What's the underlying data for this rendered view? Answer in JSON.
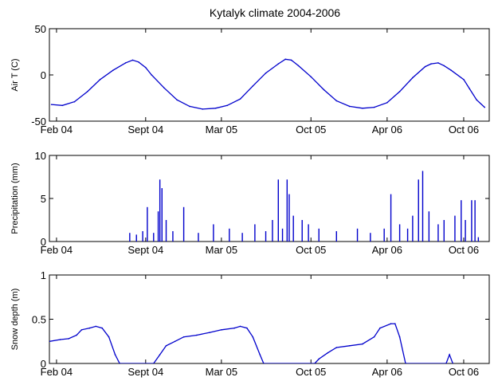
{
  "figure": {
    "title": "Kytalyk climate 2004-2006",
    "line_color": "#0000cc",
    "axis_color": "#000000",
    "background": "#ffffff"
  },
  "chart_data": [
    {
      "type": "line",
      "name": "air-temperature",
      "title": "Kytalyk climate 2004-2006",
      "xlabel": "",
      "ylabel": "Air T (C)",
      "x_axis": "date",
      "xlim": [
        "2004-01-15",
        "2006-12-01"
      ],
      "ylim": [
        -50,
        50
      ],
      "xticks": [
        {
          "date": "2004-02-01",
          "label": "Feb 04"
        },
        {
          "date": "2004-09-01",
          "label": "Sept 04"
        },
        {
          "date": "2005-03-01",
          "label": "Mar 05"
        },
        {
          "date": "2005-10-01",
          "label": "Oct 05"
        },
        {
          "date": "2006-04-01",
          "label": "Apr 06"
        },
        {
          "date": "2006-10-01",
          "label": "Oct 06"
        }
      ],
      "yticks": [
        -50,
        0,
        50
      ],
      "grid": false,
      "series": [
        {
          "color": "#0000cc",
          "x": [
            "2004-01-20",
            "2004-02-15",
            "2004-03-15",
            "2004-04-15",
            "2004-05-15",
            "2004-06-15",
            "2004-07-15",
            "2004-08-01",
            "2004-08-15",
            "2004-09-01",
            "2004-09-15",
            "2004-10-15",
            "2004-11-15",
            "2004-12-15",
            "2005-01-15",
            "2005-02-15",
            "2005-03-15",
            "2005-04-15",
            "2005-05-15",
            "2005-06-15",
            "2005-07-15",
            "2005-08-01",
            "2005-08-15",
            "2005-09-01",
            "2005-10-01",
            "2005-11-01",
            "2005-12-01",
            "2006-01-01",
            "2006-02-01",
            "2006-03-01",
            "2006-04-01",
            "2006-05-01",
            "2006-06-01",
            "2006-07-01",
            "2006-07-15",
            "2006-08-01",
            "2006-08-15",
            "2006-09-01",
            "2006-10-01",
            "2006-10-15",
            "2006-11-01",
            "2006-11-20"
          ],
          "y": [
            -32,
            -33,
            -29,
            -18,
            -5,
            5,
            13,
            16,
            14,
            8,
            0,
            -14,
            -27,
            -34,
            -37,
            -36,
            -33,
            -26,
            -12,
            2,
            12,
            17,
            16,
            10,
            -2,
            -16,
            -28,
            -34,
            -36,
            -35,
            -30,
            -18,
            -3,
            9,
            12,
            13,
            10,
            5,
            -5,
            -15,
            -27,
            -35
          ]
        }
      ]
    },
    {
      "type": "bar",
      "name": "precipitation",
      "xlabel": "",
      "ylabel": "Precipitation (mm)",
      "x_axis": "date",
      "xlim": [
        "2004-01-15",
        "2006-12-01"
      ],
      "ylim": [
        0,
        10
      ],
      "xticks": [
        {
          "date": "2004-02-01",
          "label": "Feb 04"
        },
        {
          "date": "2004-09-01",
          "label": "Sept 04"
        },
        {
          "date": "2005-03-01",
          "label": "Mar 05"
        },
        {
          "date": "2005-10-01",
          "label": "Oct 05"
        },
        {
          "date": "2006-04-01",
          "label": "Apr 06"
        },
        {
          "date": "2006-10-01",
          "label": "Oct 06"
        }
      ],
      "yticks": [
        0,
        5,
        10
      ],
      "grid": false,
      "series": [
        {
          "color": "#0000cc",
          "x": [
            "2004-07-25",
            "2004-08-10",
            "2004-08-25",
            "2004-09-05",
            "2004-09-20",
            "2004-10-01",
            "2004-10-05",
            "2004-10-10",
            "2004-10-20",
            "2004-11-05",
            "2004-12-01",
            "2005-01-05",
            "2005-02-10",
            "2005-03-20",
            "2005-04-20",
            "2005-05-20",
            "2005-06-15",
            "2005-07-01",
            "2005-07-15",
            "2005-07-25",
            "2005-08-05",
            "2005-08-10",
            "2005-08-20",
            "2005-09-10",
            "2005-09-25",
            "2005-10-20",
            "2005-12-01",
            "2006-01-20",
            "2006-02-20",
            "2006-03-25",
            "2006-04-10",
            "2006-05-01",
            "2006-05-20",
            "2006-06-01",
            "2006-06-15",
            "2006-06-25",
            "2006-07-10",
            "2006-08-01",
            "2006-08-15",
            "2006-09-10",
            "2006-09-25",
            "2006-10-05",
            "2006-10-20",
            "2006-10-28",
            "2006-11-05"
          ],
          "y": [
            1,
            0.8,
            1.2,
            4,
            1,
            3.5,
            7.2,
            6.2,
            2.5,
            1.2,
            4,
            1,
            2,
            1.5,
            1,
            2,
            1.2,
            2.5,
            7.2,
            1.5,
            7.2,
            5.5,
            3,
            2.5,
            2,
            1.5,
            1.2,
            1.5,
            1,
            1.5,
            5.5,
            2,
            1.5,
            3,
            7.2,
            8.2,
            3.5,
            2,
            2.5,
            3,
            4.8,
            2.5,
            4.8,
            4.8,
            0.5
          ]
        }
      ]
    },
    {
      "type": "line",
      "name": "snow-depth",
      "xlabel": "",
      "ylabel": "Snow depth (m)",
      "x_axis": "date",
      "xlim": [
        "2004-01-15",
        "2006-12-01"
      ],
      "ylim": [
        0,
        1
      ],
      "xticks": [
        {
          "date": "2004-02-01",
          "label": "Feb 04"
        },
        {
          "date": "2004-09-01",
          "label": "Sept 04"
        },
        {
          "date": "2005-03-01",
          "label": "Mar 05"
        },
        {
          "date": "2005-10-01",
          "label": "Oct 05"
        },
        {
          "date": "2006-04-01",
          "label": "Apr 06"
        },
        {
          "date": "2006-10-01",
          "label": "Oct 06"
        }
      ],
      "yticks": [
        0,
        0.5,
        1
      ],
      "grid": false,
      "series": [
        {
          "color": "#0000cc",
          "x": [
            "2004-01-15",
            "2004-02-10",
            "2004-03-01",
            "2004-03-20",
            "2004-04-01",
            "2004-04-20",
            "2004-05-05",
            "2004-05-20",
            "2004-06-05",
            "2004-06-20",
            "2004-07-01",
            "2004-09-20",
            "2004-10-05",
            "2004-10-20",
            "2004-11-10",
            "2004-12-01",
            "2005-01-01",
            "2005-02-01",
            "2005-03-01",
            "2005-04-01",
            "2005-04-15",
            "2005-05-01",
            "2005-05-15",
            "2005-06-01",
            "2005-06-10",
            "2005-10-10",
            "2005-10-20",
            "2005-11-10",
            "2005-12-01",
            "2006-01-01",
            "2006-02-01",
            "2006-03-01",
            "2006-03-15",
            "2006-04-10",
            "2006-04-20",
            "2006-05-01",
            "2006-05-15",
            "2006-08-20",
            "2006-08-28",
            "2006-09-05"
          ],
          "y": [
            0.25,
            0.27,
            0.28,
            0.32,
            0.38,
            0.4,
            0.42,
            0.4,
            0.3,
            0.1,
            0.0,
            0.0,
            0.1,
            0.2,
            0.25,
            0.3,
            0.32,
            0.35,
            0.38,
            0.4,
            0.42,
            0.4,
            0.3,
            0.1,
            0.0,
            0.0,
            0.05,
            0.12,
            0.18,
            0.2,
            0.22,
            0.3,
            0.4,
            0.45,
            0.45,
            0.3,
            0.0,
            0.0,
            0.1,
            0.0
          ]
        }
      ]
    }
  ]
}
